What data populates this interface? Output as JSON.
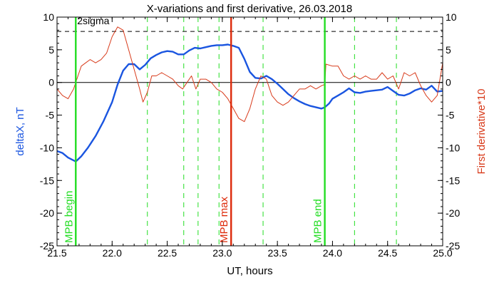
{
  "chart_data": {
    "type": "line",
    "title": "X-variations and first derivative, 26.03.2018",
    "xlabel": "UT, hours",
    "ylabel_left": "deltaX, nT",
    "ylabel_right": "First derivative*10",
    "xlim": [
      21.5,
      25.0
    ],
    "ylim": [
      -25,
      10
    ],
    "x_ticks": [
      "21.5",
      "22.0",
      "22.5",
      "23.0",
      "23.5",
      "24.0",
      "24.5",
      "25.0"
    ],
    "y_ticks_left": [
      "10",
      "5",
      "0",
      "-5",
      "-10",
      "-15",
      "-20",
      "-25"
    ],
    "y_ticks_right": [
      "10",
      "5",
      "0",
      "-5",
      "-10",
      "-15",
      "-20",
      "-25"
    ],
    "sigma": {
      "label": "2sigma",
      "value": 7.8
    },
    "colors": {
      "deltaX": "#1a55e0",
      "derivative": "#d83a1a",
      "mpb_edge": "#22dd22",
      "mpb_max": "#dd2a0a",
      "axis": "#000000"
    },
    "markers": [
      {
        "name": "MPB begin",
        "x": 21.67,
        "color": "#22dd22"
      },
      {
        "name": "MPB max",
        "x": 23.08,
        "color": "#dd2a0a"
      },
      {
        "name": "MPB end",
        "x": 23.93,
        "color": "#22dd22"
      }
    ],
    "dashed_lines_x": [
      22.32,
      22.65,
      22.78,
      22.97,
      23.37,
      24.2,
      24.58
    ],
    "series": [
      {
        "key": "deltaX",
        "axis": "left",
        "x": [
          21.5,
          21.55,
          21.6,
          21.67,
          21.72,
          21.78,
          21.85,
          21.92,
          22.0,
          22.05,
          22.1,
          22.15,
          22.2,
          22.25,
          22.3,
          22.35,
          22.4,
          22.45,
          22.5,
          22.55,
          22.6,
          22.65,
          22.7,
          22.75,
          22.8,
          22.85,
          22.9,
          22.95,
          23.0,
          23.05,
          23.1,
          23.15,
          23.2,
          23.25,
          23.3,
          23.35,
          23.4,
          23.45,
          23.5,
          23.55,
          23.6,
          23.65,
          23.7,
          23.75,
          23.8,
          23.85,
          23.9,
          23.93,
          23.97,
          24.0,
          24.05,
          24.1,
          24.15,
          24.2,
          24.25,
          24.3,
          24.35,
          24.4,
          24.45,
          24.5,
          24.55,
          24.6,
          24.65,
          24.7,
          24.75,
          24.8,
          24.85,
          24.9,
          24.95,
          25.0
        ],
        "values": [
          -10.5,
          -10.8,
          -11.5,
          -12.1,
          -11.3,
          -10.0,
          -8.2,
          -6.0,
          -3.0,
          -0.3,
          1.8,
          2.8,
          2.8,
          2.0,
          2.7,
          3.7,
          4.2,
          4.6,
          4.8,
          4.7,
          4.3,
          4.3,
          4.9,
          5.3,
          5.2,
          5.4,
          5.6,
          5.7,
          5.7,
          5.8,
          5.6,
          5.3,
          3.6,
          1.6,
          0.7,
          0.6,
          1.0,
          0.5,
          -0.2,
          -1.0,
          -1.8,
          -2.4,
          -2.9,
          -3.3,
          -3.6,
          -3.8,
          -4.0,
          -3.8,
          -3.2,
          -2.5,
          -2.0,
          -1.5,
          -0.9,
          -1.5,
          -1.6,
          -1.4,
          -1.3,
          -1.2,
          -1.1,
          -0.7,
          -1.3,
          -1.9,
          -2.0,
          -1.7,
          -1.2,
          -0.9,
          -1.1,
          -0.5,
          -1.4,
          -1.3
        ]
      },
      {
        "key": "derivative",
        "axis": "right",
        "x": [
          21.5,
          21.55,
          21.6,
          21.65,
          21.68,
          21.72,
          21.76,
          21.8,
          21.85,
          21.9,
          21.95,
          22.0,
          22.05,
          22.1,
          22.15,
          22.2,
          22.25,
          22.28,
          22.32,
          22.36,
          22.4,
          22.45,
          22.5,
          22.55,
          22.6,
          22.64,
          22.68,
          22.72,
          22.76,
          22.8,
          22.85,
          22.9,
          22.95,
          23.0,
          23.05,
          23.1,
          23.15,
          23.2,
          23.25,
          23.3,
          23.35,
          23.4,
          23.45,
          23.5,
          23.55,
          23.6,
          23.65,
          23.7,
          23.75,
          23.8,
          23.85,
          23.9,
          23.93,
          23.94,
          24.0,
          24.05,
          24.1,
          24.15,
          24.2,
          24.25,
          24.3,
          24.35,
          24.4,
          24.45,
          24.5,
          24.55,
          24.6,
          24.65,
          24.7,
          24.75,
          24.8,
          24.85,
          24.9,
          24.95,
          25.0
        ],
        "values": [
          -1.0,
          -2.0,
          -2.5,
          -1.0,
          0.5,
          2.5,
          3.0,
          3.5,
          3.0,
          3.5,
          4.5,
          7.0,
          8.5,
          8.0,
          5.0,
          2.0,
          -1.0,
          -3.0,
          -1.5,
          1.0,
          1.0,
          1.5,
          1.0,
          0.5,
          -0.5,
          -1.0,
          0.0,
          1.0,
          -1.0,
          0.5,
          0.5,
          0.0,
          -1.0,
          -1.5,
          -2.5,
          -4.0,
          -5.5,
          -6.0,
          -4.0,
          -1.0,
          1.0,
          0.5,
          -2.0,
          -3.0,
          -3.5,
          -3.0,
          -2.0,
          -1.0,
          -1.0,
          -0.5,
          -1.0,
          -0.5,
          -0.3,
          2.8,
          2.5,
          2.5,
          1.0,
          0.5,
          1.0,
          0.5,
          1.0,
          0.5,
          0.5,
          1.5,
          0.5,
          1.0,
          -1.0,
          1.5,
          1.0,
          1.5,
          -0.5,
          -2.0,
          -3.0,
          -2.0,
          3.0
        ]
      }
    ]
  }
}
